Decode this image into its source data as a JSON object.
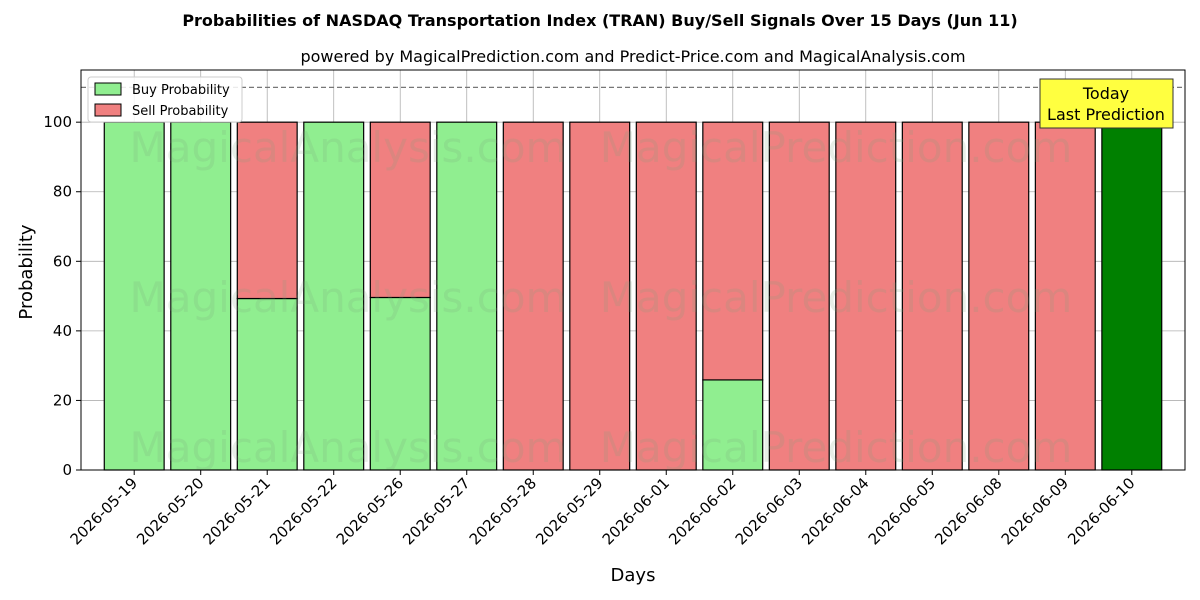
{
  "chart_data": {
    "type": "bar",
    "stacked": true,
    "title": "Probabilities of NASDAQ Transportation Index (TRAN) Buy/Sell Signals Over 15 Days (Jun 11)",
    "subtitle": "powered by MagicalPrediction.com and Predict-Price.com and MagicalAnalysis.com",
    "xlabel": "Days",
    "ylabel": "Probability",
    "ylim": [
      0,
      115
    ],
    "yticks": [
      0,
      20,
      40,
      60,
      80,
      100
    ],
    "grid": true,
    "legend_position": "top-left",
    "reference_line": 110,
    "categories": [
      "2026-05-19",
      "2026-05-20",
      "2026-05-21",
      "2026-05-22",
      "2026-05-26",
      "2026-05-27",
      "2026-05-28",
      "2026-05-29",
      "2026-06-01",
      "2026-06-02",
      "2026-06-03",
      "2026-06-04",
      "2026-06-05",
      "2026-06-08",
      "2026-06-09",
      "2026-06-10"
    ],
    "series": [
      {
        "name": "Buy Probability",
        "color": "#90ee90",
        "values": [
          100,
          100,
          49.3,
          100,
          49.6,
          100,
          0,
          0,
          0,
          25.9,
          0,
          0,
          0,
          0,
          0,
          100
        ]
      },
      {
        "name": "Sell Probability",
        "color": "#f08080",
        "values": [
          0,
          0,
          50.7,
          0,
          50.4,
          0,
          100,
          100,
          100,
          74.1,
          100,
          100,
          100,
          100,
          100,
          0
        ]
      }
    ],
    "highlight": {
      "index": 15,
      "color": "#008000"
    },
    "annotation": {
      "lines": [
        "Today",
        "Last Prediction"
      ],
      "background": "#ffff40"
    },
    "watermarks": [
      "MagicalAnalysis.com",
      "MagicalPrediction.com"
    ]
  }
}
